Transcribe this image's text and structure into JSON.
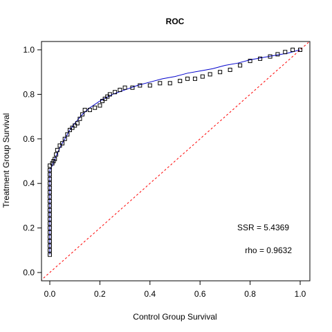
{
  "chart_data": {
    "type": "scatter",
    "title": "ROC",
    "xlabel": "Control Group Survival",
    "ylabel": "Treatment Group Survival",
    "xlim": [
      0,
      1
    ],
    "ylim": [
      0,
      1
    ],
    "xticks": [
      0.0,
      0.2,
      0.4,
      0.6,
      0.8,
      1.0
    ],
    "yticks": [
      0.0,
      0.2,
      0.4,
      0.6,
      0.8,
      1.0
    ],
    "xtick_labels": [
      "0.0",
      "0.2",
      "0.4",
      "0.6",
      "0.8",
      "1.0"
    ],
    "ytick_labels": [
      "0.0",
      "0.2",
      "0.4",
      "0.6",
      "0.8",
      "1.0"
    ],
    "grid": false,
    "annotations": [
      "SSR = 5.4369",
      "rho = 0.9632"
    ],
    "series": [
      {
        "kind": "points",
        "marker": "open-square",
        "color": "#000000",
        "points": [
          [
            0.0,
            0.08
          ],
          [
            0.0,
            0.1
          ],
          [
            0.0,
            0.12
          ],
          [
            0.0,
            0.14
          ],
          [
            0.0,
            0.16
          ],
          [
            0.0,
            0.18
          ],
          [
            0.0,
            0.2
          ],
          [
            0.0,
            0.22
          ],
          [
            0.0,
            0.24
          ],
          [
            0.0,
            0.26
          ],
          [
            0.0,
            0.28
          ],
          [
            0.0,
            0.3
          ],
          [
            0.0,
            0.32
          ],
          [
            0.0,
            0.34
          ],
          [
            0.0,
            0.36
          ],
          [
            0.0,
            0.38
          ],
          [
            0.0,
            0.4
          ],
          [
            0.0,
            0.42
          ],
          [
            0.0,
            0.44
          ],
          [
            0.0,
            0.46
          ],
          [
            0.0,
            0.48
          ],
          [
            0.01,
            0.49
          ],
          [
            0.015,
            0.5
          ],
          [
            0.02,
            0.51
          ],
          [
            0.025,
            0.53
          ],
          [
            0.03,
            0.55
          ],
          [
            0.04,
            0.57
          ],
          [
            0.05,
            0.58
          ],
          [
            0.06,
            0.6
          ],
          [
            0.07,
            0.62
          ],
          [
            0.08,
            0.64
          ],
          [
            0.09,
            0.65
          ],
          [
            0.1,
            0.66
          ],
          [
            0.11,
            0.67
          ],
          [
            0.12,
            0.69
          ],
          [
            0.13,
            0.71
          ],
          [
            0.14,
            0.73
          ],
          [
            0.16,
            0.73
          ],
          [
            0.18,
            0.74
          ],
          [
            0.2,
            0.75
          ],
          [
            0.21,
            0.77
          ],
          [
            0.22,
            0.78
          ],
          [
            0.23,
            0.79
          ],
          [
            0.24,
            0.8
          ],
          [
            0.26,
            0.81
          ],
          [
            0.28,
            0.82
          ],
          [
            0.3,
            0.83
          ],
          [
            0.33,
            0.83
          ],
          [
            0.36,
            0.84
          ],
          [
            0.4,
            0.84
          ],
          [
            0.44,
            0.85
          ],
          [
            0.48,
            0.85
          ],
          [
            0.52,
            0.86
          ],
          [
            0.55,
            0.87
          ],
          [
            0.58,
            0.87
          ],
          [
            0.61,
            0.88
          ],
          [
            0.64,
            0.89
          ],
          [
            0.68,
            0.9
          ],
          [
            0.72,
            0.91
          ],
          [
            0.76,
            0.93
          ],
          [
            0.8,
            0.95
          ],
          [
            0.84,
            0.96
          ],
          [
            0.88,
            0.97
          ],
          [
            0.91,
            0.98
          ],
          [
            0.94,
            0.99
          ],
          [
            0.97,
            1.0
          ],
          [
            1.0,
            1.0
          ]
        ]
      },
      {
        "kind": "curve",
        "color": "#0000cc",
        "points": [
          [
            0.0,
            0.08
          ],
          [
            0.0,
            0.46
          ],
          [
            0.01,
            0.48
          ],
          [
            0.02,
            0.51
          ],
          [
            0.04,
            0.56
          ],
          [
            0.06,
            0.6
          ],
          [
            0.08,
            0.64
          ],
          [
            0.1,
            0.67
          ],
          [
            0.13,
            0.71
          ],
          [
            0.16,
            0.74
          ],
          [
            0.2,
            0.77
          ],
          [
            0.25,
            0.8
          ],
          [
            0.3,
            0.82
          ],
          [
            0.35,
            0.84
          ],
          [
            0.4,
            0.855
          ],
          [
            0.45,
            0.87
          ],
          [
            0.5,
            0.88
          ],
          [
            0.55,
            0.895
          ],
          [
            0.6,
            0.905
          ],
          [
            0.65,
            0.915
          ],
          [
            0.7,
            0.93
          ],
          [
            0.75,
            0.94
          ],
          [
            0.8,
            0.955
          ],
          [
            0.85,
            0.965
          ],
          [
            0.9,
            0.975
          ],
          [
            0.95,
            0.985
          ],
          [
            1.0,
            1.0
          ]
        ]
      },
      {
        "kind": "reference-line",
        "color": "#ff0000",
        "dashed": true,
        "points": [
          [
            -0.05,
            -0.05
          ],
          [
            1.05,
            1.05
          ]
        ]
      }
    ]
  }
}
